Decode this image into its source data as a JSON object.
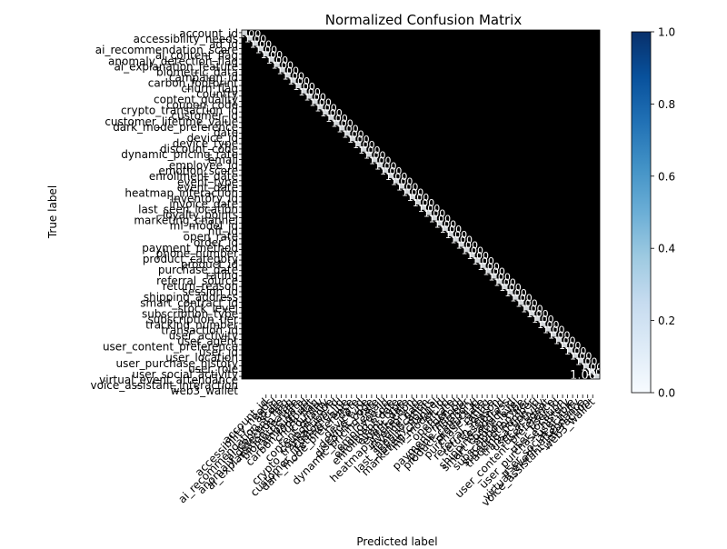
{
  "chart_data": {
    "type": "heatmap",
    "title": "Normalized Confusion Matrix",
    "xlabel": "Predicted label",
    "ylabel": "True label",
    "classes": [
      "account_id",
      "accessibility_needs",
      "ad_id",
      "ai_recommendation_score",
      "ai_content_flag",
      "anomaly_detection_flag",
      "ai_explanation_feature",
      "biometric_data",
      "campaign_id",
      "carbon_footprint",
      "churn_flag",
      "country",
      "content_quality",
      "coupon_code",
      "crypto_transaction_id",
      "customer_id",
      "customer_lifetime_value",
      "dark_mode_preference",
      "date",
      "device_id",
      "device_type",
      "discount_code",
      "dynamic_pricing_rate",
      "email",
      "employee_id",
      "emotion_score",
      "enrollment_date",
      "event_type",
      "event_date",
      "heatmap_interaction",
      "inventory_id",
      "invoice_date",
      "last_seen_location",
      "loyalty_points",
      "marketing_channel",
      "ml_model_id",
      "nft_id",
      "open_rate",
      "order_id",
      "payment_method",
      "phone_number",
      "product_category",
      "product_id",
      "purchase_date",
      "rating",
      "referral_source",
      "return_reason",
      "session_id",
      "shipping_address",
      "smart_contract_id",
      "stock_level",
      "subscription_type",
      "subscription_tier",
      "tracking_number",
      "transaction_id",
      "user_activity",
      "user_agent",
      "user_content_preference",
      "user_id",
      "user_location",
      "user_purchase_history",
      "user_role",
      "user_social_activity",
      "virtual_event_attendance",
      "voice_assistant_interaction",
      "web3_wallet"
    ],
    "diagonal_value": 1.0,
    "off_diagonal_value": 0.0,
    "cell_label_format": "0.00",
    "visible_diagonal_label": "1.00",
    "colorbar": {
      "colormap": "Blues",
      "min": 0.0,
      "max": 1.0,
      "ticks": [
        "0.0",
        "0.2",
        "0.4",
        "0.6",
        "0.8",
        "1.0"
      ]
    },
    "colors": {
      "cell_fill": "#000000",
      "diagonal_line": "#f7fbff",
      "cmap_low": "#f7fbff",
      "cmap_high": "#08306b"
    }
  }
}
